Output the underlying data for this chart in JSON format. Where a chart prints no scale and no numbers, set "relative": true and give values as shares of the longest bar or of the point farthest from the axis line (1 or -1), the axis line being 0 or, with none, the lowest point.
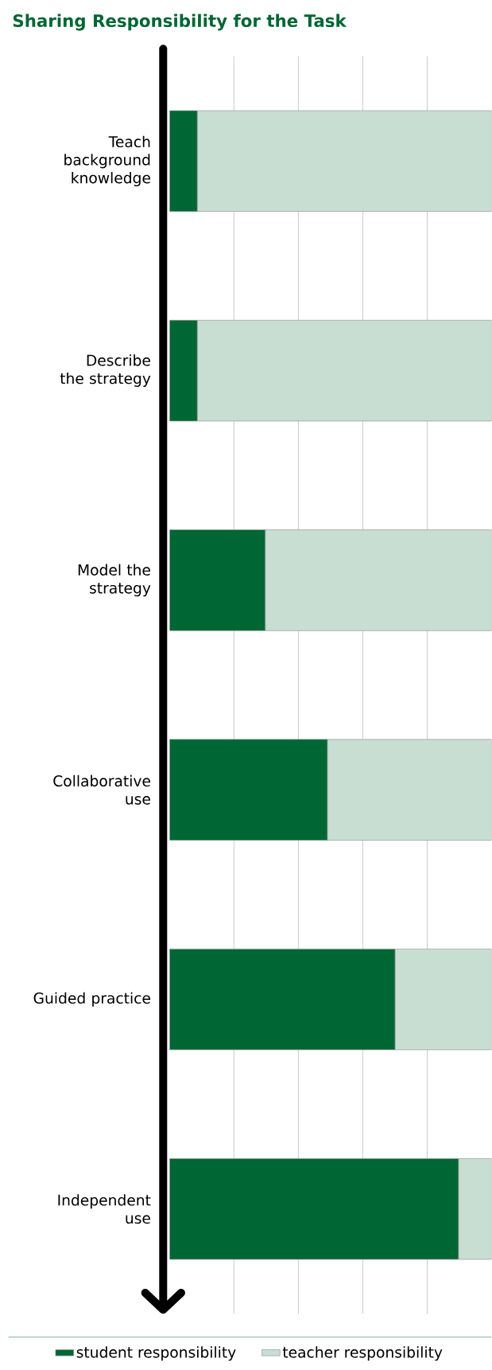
{
  "chart_data": {
    "type": "bar",
    "orientation": "horizontal",
    "stacked": true,
    "relative": true,
    "title": "Sharing Responsibility for the Task",
    "categories": [
      "Teach background knowledge",
      "Describe the strategy",
      "Model the strategy",
      "Collaborative use",
      "Guided practice",
      "Independent use"
    ],
    "series": [
      {
        "name": "student responsibility",
        "color": "#006633",
        "values": [
          0.086,
          0.086,
          0.297,
          0.49,
          0.7,
          0.897
        ]
      },
      {
        "name": "teacher responsibility",
        "color": "#c8ded3",
        "values": [
          0.914,
          0.914,
          0.703,
          0.51,
          0.3,
          0.103
        ]
      }
    ],
    "grid": "x",
    "legend": "bottom"
  }
}
